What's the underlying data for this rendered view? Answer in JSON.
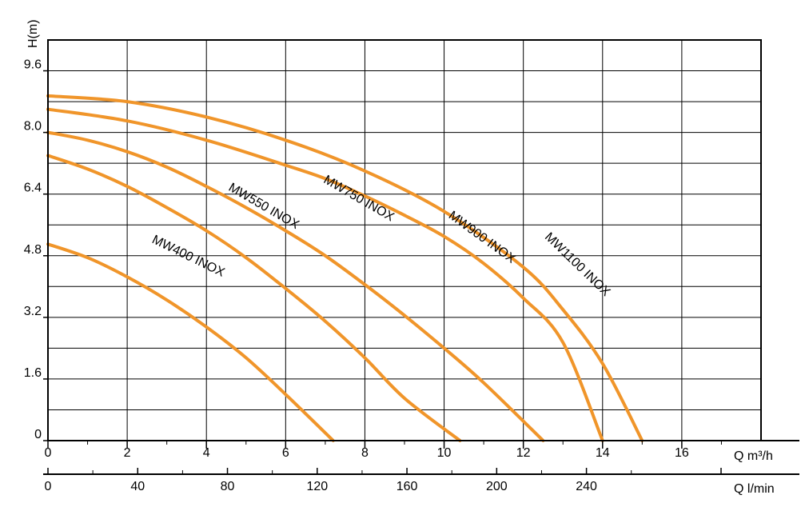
{
  "chart_data": {
    "type": "line",
    "ylabel": "H(m)",
    "xlabel": "Q m³/h",
    "x2label": "Q l/min",
    "xlim": [
      0,
      18
    ],
    "ylim": [
      0,
      10.4
    ],
    "x_ticks": [
      0,
      2,
      4,
      6,
      8,
      10,
      12,
      14,
      16
    ],
    "x_minor": [
      1,
      3,
      5,
      7,
      9,
      11,
      13,
      15,
      17
    ],
    "y_ticks": [
      0,
      1.6,
      3.2,
      4.8,
      6.4,
      8.0,
      9.6
    ],
    "y_tick_labels": [
      "0",
      "1.6",
      "3.2",
      "4.8",
      "6.4",
      "8.0",
      "9.6"
    ],
    "y_grid": [
      0.8,
      1.6,
      2.4,
      3.2,
      4.0,
      4.8,
      5.6,
      6.4,
      7.2,
      8.0,
      8.8,
      9.6
    ],
    "x2_ticks": [
      0,
      40,
      80,
      120,
      160,
      200,
      240
    ],
    "x2_max": 300,
    "grid": true,
    "curve_color": "#F0952A",
    "series": [
      {
        "name": "MW400 INOX",
        "label_q": 3.5,
        "label_h": 4.7,
        "label_angle": 26,
        "points": [
          [
            0,
            5.1
          ],
          [
            1,
            4.75
          ],
          [
            2,
            4.25
          ],
          [
            3,
            3.65
          ],
          [
            4,
            2.95
          ],
          [
            5,
            2.15
          ],
          [
            6,
            1.2
          ],
          [
            7.2,
            0
          ]
        ]
      },
      {
        "name": "MW550 INOX",
        "label_q": 5.4,
        "label_h": 6.0,
        "label_angle": 30,
        "points": [
          [
            0,
            7.4
          ],
          [
            1,
            7.05
          ],
          [
            2,
            6.6
          ],
          [
            3,
            6.05
          ],
          [
            4,
            5.45
          ],
          [
            5,
            4.75
          ],
          [
            6,
            3.95
          ],
          [
            7,
            3.1
          ],
          [
            8,
            2.15
          ],
          [
            9,
            1.1
          ],
          [
            10.4,
            0
          ]
        ]
      },
      {
        "name": "MW750 INOX",
        "label_q": 7.8,
        "label_h": 6.2,
        "label_angle": 30,
        "points": [
          [
            0,
            8.0
          ],
          [
            1,
            7.8
          ],
          [
            2,
            7.5
          ],
          [
            3,
            7.1
          ],
          [
            4,
            6.6
          ],
          [
            5,
            6.05
          ],
          [
            6,
            5.45
          ],
          [
            7,
            4.8
          ],
          [
            8,
            4.05
          ],
          [
            9,
            3.25
          ],
          [
            10,
            2.4
          ],
          [
            11,
            1.5
          ],
          [
            12.5,
            0
          ]
        ]
      },
      {
        "name": "MW900 INOX",
        "label_q": 10.9,
        "label_h": 5.2,
        "label_angle": 36,
        "points": [
          [
            0,
            8.6
          ],
          [
            2,
            8.3
          ],
          [
            4,
            7.8
          ],
          [
            6,
            7.15
          ],
          [
            7,
            6.8
          ],
          [
            8,
            6.35
          ],
          [
            9,
            5.85
          ],
          [
            10,
            5.3
          ],
          [
            11,
            4.6
          ],
          [
            12,
            3.7
          ],
          [
            13,
            2.55
          ],
          [
            14,
            0
          ]
        ]
      },
      {
        "name": "MW1100 INOX",
        "label_q": 13.3,
        "label_h": 4.5,
        "label_angle": 44,
        "points": [
          [
            0,
            8.95
          ],
          [
            2,
            8.8
          ],
          [
            4,
            8.4
          ],
          [
            6,
            7.8
          ],
          [
            8,
            7.0
          ],
          [
            10,
            5.95
          ],
          [
            12,
            4.5
          ],
          [
            13,
            3.4
          ],
          [
            14,
            2.0
          ],
          [
            15,
            0
          ]
        ]
      }
    ]
  }
}
